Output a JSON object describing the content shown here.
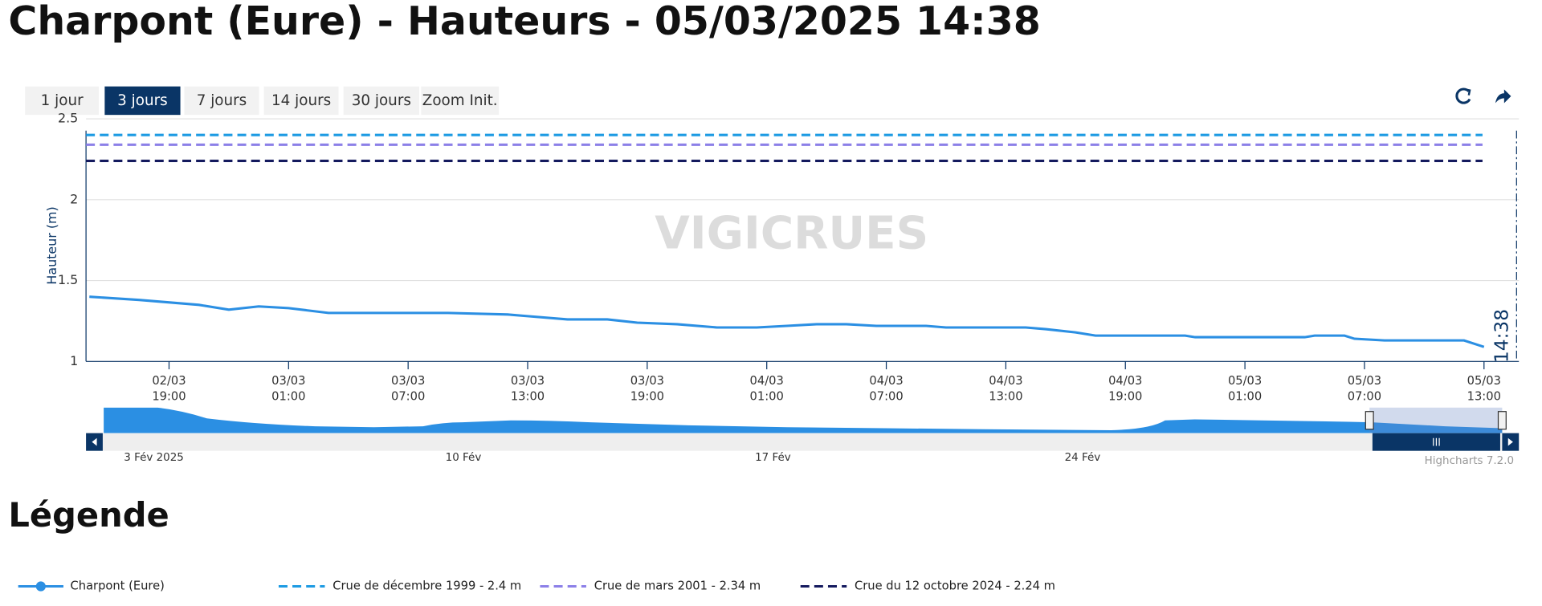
{
  "title": "Charpont (Eure) - Hauteurs - 05/03/2025 14:38",
  "range_buttons": {
    "labels": [
      "1 jour",
      "3 jours",
      "7 jours",
      "14 jours",
      "30 jours",
      "Zoom Init."
    ],
    "selected": 1
  },
  "chart_data": {
    "type": "line",
    "y_label": "Hauteur (m)",
    "x": [
      "02/03 15:00",
      "02/03 17:30",
      "02/03 20:30",
      "02/03 22:00",
      "02/03 23:30",
      "03/03 01:00",
      "03/03 03:00",
      "03/03 09:00",
      "03/03 12:00",
      "03/03 13:00",
      "03/03 15:00",
      "03/03 17:00",
      "03/03 18:30",
      "03/03 20:30",
      "03/03 22:30",
      "04/03 00:30",
      "04/03 02:00",
      "04/03 03:30",
      "04/03 05:00",
      "04/03 06:30",
      "04/03 09:00",
      "04/03 10:00",
      "04/03 14:00",
      "04/03 15:00",
      "04/03 16:30",
      "04/03 17:30",
      "04/03 22:00",
      "04/03 22:30",
      "05/03 04:00",
      "05/03 04:30",
      "05/03 06:00",
      "05/03 06:30",
      "05/03 08:00",
      "05/03 09:00",
      "05/03 12:00",
      "05/03 13:00"
    ],
    "series": [
      {
        "name": "Charpont (Eure)",
        "color": "#2b8fe3",
        "values": [
          1.4,
          1.38,
          1.35,
          1.32,
          1.34,
          1.33,
          1.3,
          1.3,
          1.29,
          1.28,
          1.26,
          1.26,
          1.24,
          1.23,
          1.21,
          1.21,
          1.22,
          1.23,
          1.23,
          1.22,
          1.22,
          1.21,
          1.21,
          1.2,
          1.18,
          1.16,
          1.16,
          1.15,
          1.15,
          1.16,
          1.16,
          1.14,
          1.13,
          1.13,
          1.13,
          1.09
        ]
      }
    ],
    "plot_lines": [
      {
        "name": "Crue de décembre 1999 - 2.4 m",
        "value": 2.4,
        "color": "#1d9be3"
      },
      {
        "name": "Crue de mars 2001 - 2.34 m",
        "value": 2.34,
        "color": "#8c80e8"
      },
      {
        "name": "Crue du 12 octobre 2024 - 2.24 m",
        "value": 2.24,
        "color": "#141a5e"
      }
    ],
    "now": {
      "x": "05/03 14:38",
      "label": "14:38"
    },
    "xlim": [
      "02/03 14:50",
      "05/03 14:45"
    ],
    "xticks": [
      "02/03 19:00",
      "03/03 01:00",
      "03/03 07:00",
      "03/03 13:00",
      "03/03 19:00",
      "04/03 01:00",
      "04/03 07:00",
      "04/03 13:00",
      "04/03 19:00",
      "05/03 01:00",
      "05/03 07:00",
      "05/03 13:00"
    ],
    "ylim": [
      1,
      2.5
    ],
    "yticks": [
      1,
      1.5,
      2,
      2.5
    ],
    "grid": true
  },
  "watermark": "VIGICRUES",
  "navigator": {
    "labels": [
      "3 Fév 2025",
      "10 Fév",
      "17 Fév",
      "24 Fév"
    ]
  },
  "credits": "Highcharts 7.2.0",
  "legend_title": "Légende"
}
